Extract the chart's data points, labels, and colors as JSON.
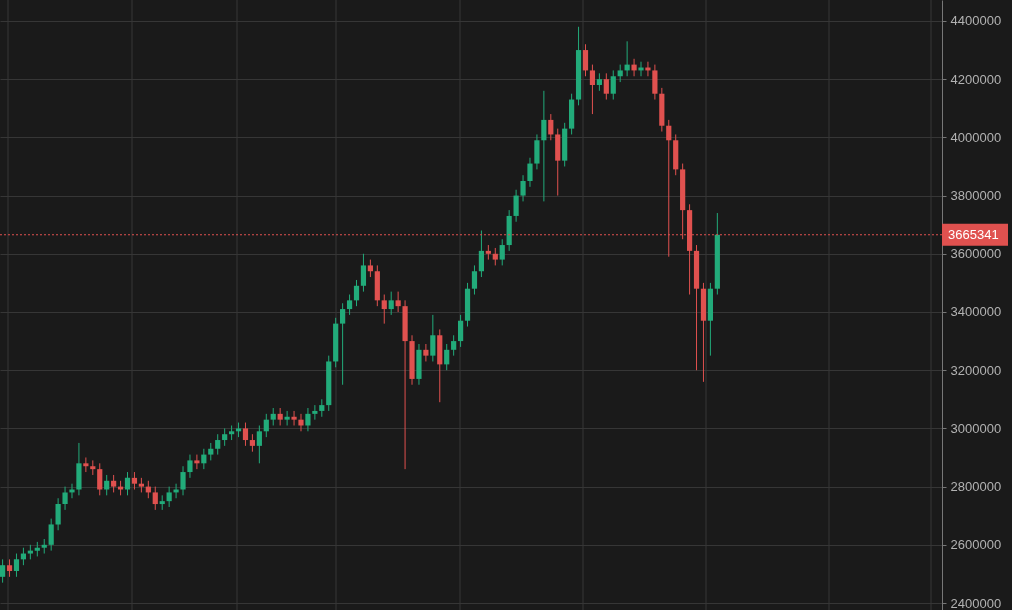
{
  "chart_data": {
    "type": "candlestick",
    "categories": [
      null,
      null,
      null,
      null,
      null,
      null,
      null,
      null,
      null,
      null,
      null,
      null,
      null,
      null,
      null,
      null,
      null,
      null,
      null,
      null,
      null,
      null,
      null,
      null,
      null,
      null,
      null,
      null,
      null,
      null,
      null,
      null,
      null,
      null,
      null,
      null,
      null,
      null,
      null,
      null,
      null,
      null,
      null,
      null,
      null,
      null,
      null,
      null,
      null,
      null,
      null,
      null,
      null,
      null,
      null,
      null,
      null,
      null,
      null,
      null,
      null,
      null,
      null,
      null,
      null,
      null,
      null,
      null,
      null,
      null,
      null,
      null,
      null,
      null,
      null,
      null,
      null,
      null,
      null,
      null,
      null,
      null,
      null,
      null,
      null,
      null,
      null,
      null,
      null,
      null,
      null,
      null,
      null,
      null,
      null,
      null,
      null,
      null,
      null,
      null,
      null,
      null,
      null,
      null,
      null,
      null,
      null,
      null,
      null,
      null,
      null,
      null,
      null,
      null,
      null,
      null,
      null,
      null,
      null,
      null,
      null,
      null,
      null,
      null,
      null,
      null,
      null,
      null,
      null,
      null,
      null,
      null,
      null,
      null,
      null,
      null
    ],
    "ohlc": [
      [
        2490000,
        2550000,
        2470000,
        2530000
      ],
      [
        2530000,
        2550000,
        2490000,
        2510000
      ],
      [
        2510000,
        2570000,
        2490000,
        2550000
      ],
      [
        2550000,
        2590000,
        2530000,
        2570000
      ],
      [
        2570000,
        2600000,
        2550000,
        2580000
      ],
      [
        2580000,
        2610000,
        2560000,
        2590000
      ],
      [
        2590000,
        2620000,
        2570000,
        2600000
      ],
      [
        2600000,
        2690000,
        2580000,
        2670000
      ],
      [
        2670000,
        2760000,
        2650000,
        2740000
      ],
      [
        2740000,
        2800000,
        2720000,
        2780000
      ],
      [
        2780000,
        2810000,
        2760000,
        2790000
      ],
      [
        2790000,
        2950000,
        2770000,
        2880000
      ],
      [
        2880000,
        2900000,
        2850000,
        2870000
      ],
      [
        2870000,
        2890000,
        2840000,
        2860000
      ],
      [
        2860000,
        2880000,
        2770000,
        2790000
      ],
      [
        2790000,
        2840000,
        2770000,
        2820000
      ],
      [
        2820000,
        2840000,
        2780000,
        2800000
      ],
      [
        2800000,
        2820000,
        2770000,
        2790000
      ],
      [
        2790000,
        2850000,
        2770000,
        2830000
      ],
      [
        2830000,
        2850000,
        2790000,
        2810000
      ],
      [
        2810000,
        2830000,
        2780000,
        2800000
      ],
      [
        2800000,
        2820000,
        2760000,
        2780000
      ],
      [
        2780000,
        2800000,
        2720000,
        2740000
      ],
      [
        2740000,
        2770000,
        2720000,
        2750000
      ],
      [
        2750000,
        2800000,
        2730000,
        2780000
      ],
      [
        2780000,
        2810000,
        2760000,
        2790000
      ],
      [
        2790000,
        2870000,
        2770000,
        2850000
      ],
      [
        2850000,
        2910000,
        2830000,
        2890000
      ],
      [
        2890000,
        2910000,
        2860000,
        2880000
      ],
      [
        2880000,
        2930000,
        2860000,
        2910000
      ],
      [
        2910000,
        2950000,
        2890000,
        2930000
      ],
      [
        2930000,
        2980000,
        2910000,
        2960000
      ],
      [
        2960000,
        3000000,
        2940000,
        2980000
      ],
      [
        2980000,
        3010000,
        2960000,
        2990000
      ],
      [
        2990000,
        3020000,
        2970000,
        3000000
      ],
      [
        3000000,
        3020000,
        2940000,
        2960000
      ],
      [
        2960000,
        2980000,
        2920000,
        2940000
      ],
      [
        2940000,
        3010000,
        2880000,
        2990000
      ],
      [
        2990000,
        3050000,
        2970000,
        3030000
      ],
      [
        3030000,
        3070000,
        3010000,
        3050000
      ],
      [
        3050000,
        3070000,
        3010000,
        3030000
      ],
      [
        3030000,
        3060000,
        3010000,
        3040000
      ],
      [
        3040000,
        3060000,
        3010000,
        3030000
      ],
      [
        3030000,
        3050000,
        2990000,
        3010000
      ],
      [
        3010000,
        3070000,
        2990000,
        3050000
      ],
      [
        3050000,
        3080000,
        3030000,
        3060000
      ],
      [
        3060000,
        3100000,
        3040000,
        3080000
      ],
      [
        3080000,
        3250000,
        3060000,
        3230000
      ],
      [
        3230000,
        3380000,
        3210000,
        3360000
      ],
      [
        3360000,
        3430000,
        3150000,
        3410000
      ],
      [
        3410000,
        3460000,
        3390000,
        3440000
      ],
      [
        3440000,
        3510000,
        3420000,
        3490000
      ],
      [
        3490000,
        3600000,
        3470000,
        3560000
      ],
      [
        3560000,
        3580000,
        3520000,
        3540000
      ],
      [
        3540000,
        3560000,
        3420000,
        3440000
      ],
      [
        3440000,
        3460000,
        3360000,
        3410000
      ],
      [
        3410000,
        3470000,
        3390000,
        3440000
      ],
      [
        3440000,
        3470000,
        3400000,
        3420000
      ],
      [
        3420000,
        3440000,
        2860000,
        3300000
      ],
      [
        3300000,
        3320000,
        3150000,
        3170000
      ],
      [
        3170000,
        3290000,
        3150000,
        3270000
      ],
      [
        3270000,
        3290000,
        3230000,
        3250000
      ],
      [
        3250000,
        3390000,
        3230000,
        3320000
      ],
      [
        3320000,
        3340000,
        3090000,
        3220000
      ],
      [
        3220000,
        3290000,
        3200000,
        3270000
      ],
      [
        3270000,
        3320000,
        3250000,
        3300000
      ],
      [
        3300000,
        3390000,
        3280000,
        3370000
      ],
      [
        3370000,
        3500000,
        3350000,
        3480000
      ],
      [
        3480000,
        3560000,
        3460000,
        3540000
      ],
      [
        3540000,
        3680000,
        3520000,
        3610000
      ],
      [
        3610000,
        3630000,
        3580000,
        3600000
      ],
      [
        3600000,
        3620000,
        3560000,
        3580000
      ],
      [
        3580000,
        3650000,
        3560000,
        3630000
      ],
      [
        3630000,
        3750000,
        3610000,
        3730000
      ],
      [
        3730000,
        3820000,
        3710000,
        3800000
      ],
      [
        3800000,
        3870000,
        3780000,
        3850000
      ],
      [
        3850000,
        3930000,
        3830000,
        3910000
      ],
      [
        3910000,
        4010000,
        3890000,
        3990000
      ],
      [
        3990000,
        4160000,
        3780000,
        4060000
      ],
      [
        4060000,
        4080000,
        3990000,
        4010000
      ],
      [
        4010000,
        4030000,
        3800000,
        3920000
      ],
      [
        3920000,
        4050000,
        3900000,
        4030000
      ],
      [
        4030000,
        4150000,
        4010000,
        4130000
      ],
      [
        4130000,
        4380000,
        4110000,
        4300000
      ],
      [
        4300000,
        4320000,
        4210000,
        4230000
      ],
      [
        4230000,
        4250000,
        4080000,
        4180000
      ],
      [
        4180000,
        4220000,
        4160000,
        4200000
      ],
      [
        4200000,
        4220000,
        4130000,
        4150000
      ],
      [
        4150000,
        4230000,
        4130000,
        4210000
      ],
      [
        4210000,
        4250000,
        4190000,
        4230000
      ],
      [
        4230000,
        4330000,
        4210000,
        4250000
      ],
      [
        4250000,
        4270000,
        4210000,
        4230000
      ],
      [
        4230000,
        4260000,
        4210000,
        4240000
      ],
      [
        4240000,
        4260000,
        4210000,
        4230000
      ],
      [
        4230000,
        4250000,
        4130000,
        4150000
      ],
      [
        4150000,
        4170000,
        4020000,
        4040000
      ],
      [
        4040000,
        4060000,
        3590000,
        3990000
      ],
      [
        3990000,
        4010000,
        3870000,
        3890000
      ],
      [
        3890000,
        3910000,
        3650000,
        3750000
      ],
      [
        3750000,
        3770000,
        3460000,
        3610000
      ],
      [
        3610000,
        3630000,
        3200000,
        3480000
      ],
      [
        3480000,
        3500000,
        3160000,
        3370000
      ],
      [
        3370000,
        3500000,
        3250000,
        3480000
      ],
      [
        3480000,
        3740000,
        3460000,
        3665341
      ],
      null,
      null,
      null,
      null,
      null,
      null,
      null,
      null,
      null,
      null,
      null,
      null,
      null,
      null,
      null,
      null,
      null,
      null,
      null,
      null,
      null,
      null,
      null,
      null,
      null,
      null,
      null,
      null,
      null,
      null,
      null,
      null
    ],
    "colors": [
      "#22ab7a",
      "#e0514f",
      "#22ab7a",
      "#22ab7a",
      "#22ab7a",
      "#22ab7a",
      "#22ab7a",
      "#22ab7a",
      "#22ab7a",
      "#22ab7a",
      "#22ab7a",
      "#22ab7a",
      "#e0514f",
      "#e0514f",
      "#e0514f",
      "#22ab7a",
      "#e0514f",
      "#e0514f",
      "#22ab7a",
      "#e0514f",
      "#e0514f",
      "#e0514f",
      "#e0514f",
      "#22ab7a",
      "#22ab7a",
      "#22ab7a",
      "#22ab7a",
      "#22ab7a",
      "#e0514f",
      "#22ab7a",
      "#22ab7a",
      "#22ab7a",
      "#22ab7a",
      "#22ab7a",
      "#22ab7a",
      "#e0514f",
      "#e0514f",
      "#22ab7a",
      "#22ab7a",
      "#22ab7a",
      "#e0514f",
      "#22ab7a",
      "#e0514f",
      "#e0514f",
      "#22ab7a",
      "#22ab7a",
      "#22ab7a",
      "#22ab7a",
      "#22ab7a",
      "#22ab7a",
      "#22ab7a",
      "#22ab7a",
      "#22ab7a",
      "#e0514f",
      "#e0514f",
      "#e0514f",
      "#22ab7a",
      "#e0514f",
      "#e0514f",
      "#e0514f",
      "#22ab7a",
      "#e0514f",
      "#22ab7a",
      "#e0514f",
      "#22ab7a",
      "#22ab7a",
      "#22ab7a",
      "#22ab7a",
      "#22ab7a",
      "#22ab7a",
      "#e0514f",
      "#e0514f",
      "#22ab7a",
      "#22ab7a",
      "#22ab7a",
      "#22ab7a",
      "#22ab7a",
      "#22ab7a",
      "#22ab7a",
      "#e0514f",
      "#e0514f",
      "#22ab7a",
      "#22ab7a",
      "#22ab7a",
      "#e0514f",
      "#e0514f",
      "#22ab7a",
      "#e0514f",
      "#22ab7a",
      "#22ab7a",
      "#22ab7a",
      "#e0514f",
      "#22ab7a",
      "#e0514f",
      "#e0514f",
      "#e0514f",
      "#e0514f",
      "#e0514f",
      "#e0514f",
      "#e0514f",
      "#e0514f",
      "#e0514f",
      "#22ab7a",
      "#22ab7a",
      null,
      null,
      null,
      null,
      null,
      null,
      null,
      null,
      null,
      null,
      null,
      null,
      null,
      null,
      null,
      null,
      null,
      null,
      null,
      null,
      null,
      null,
      null,
      null,
      null,
      null,
      null,
      null,
      null,
      null,
      null,
      null
    ],
    "ylim": [
      2376000,
      4472000
    ],
    "yticks": [
      2400000,
      2600000,
      2800000,
      3000000,
      3200000,
      3400000,
      3600000,
      3800000,
      4000000,
      4200000,
      4400000
    ],
    "grid": true,
    "ref_lines": [
      {
        "axis": "y",
        "value": 3665341,
        "label": "3665341",
        "color": "#e0514f",
        "line_style": "dotted"
      }
    ]
  }
}
